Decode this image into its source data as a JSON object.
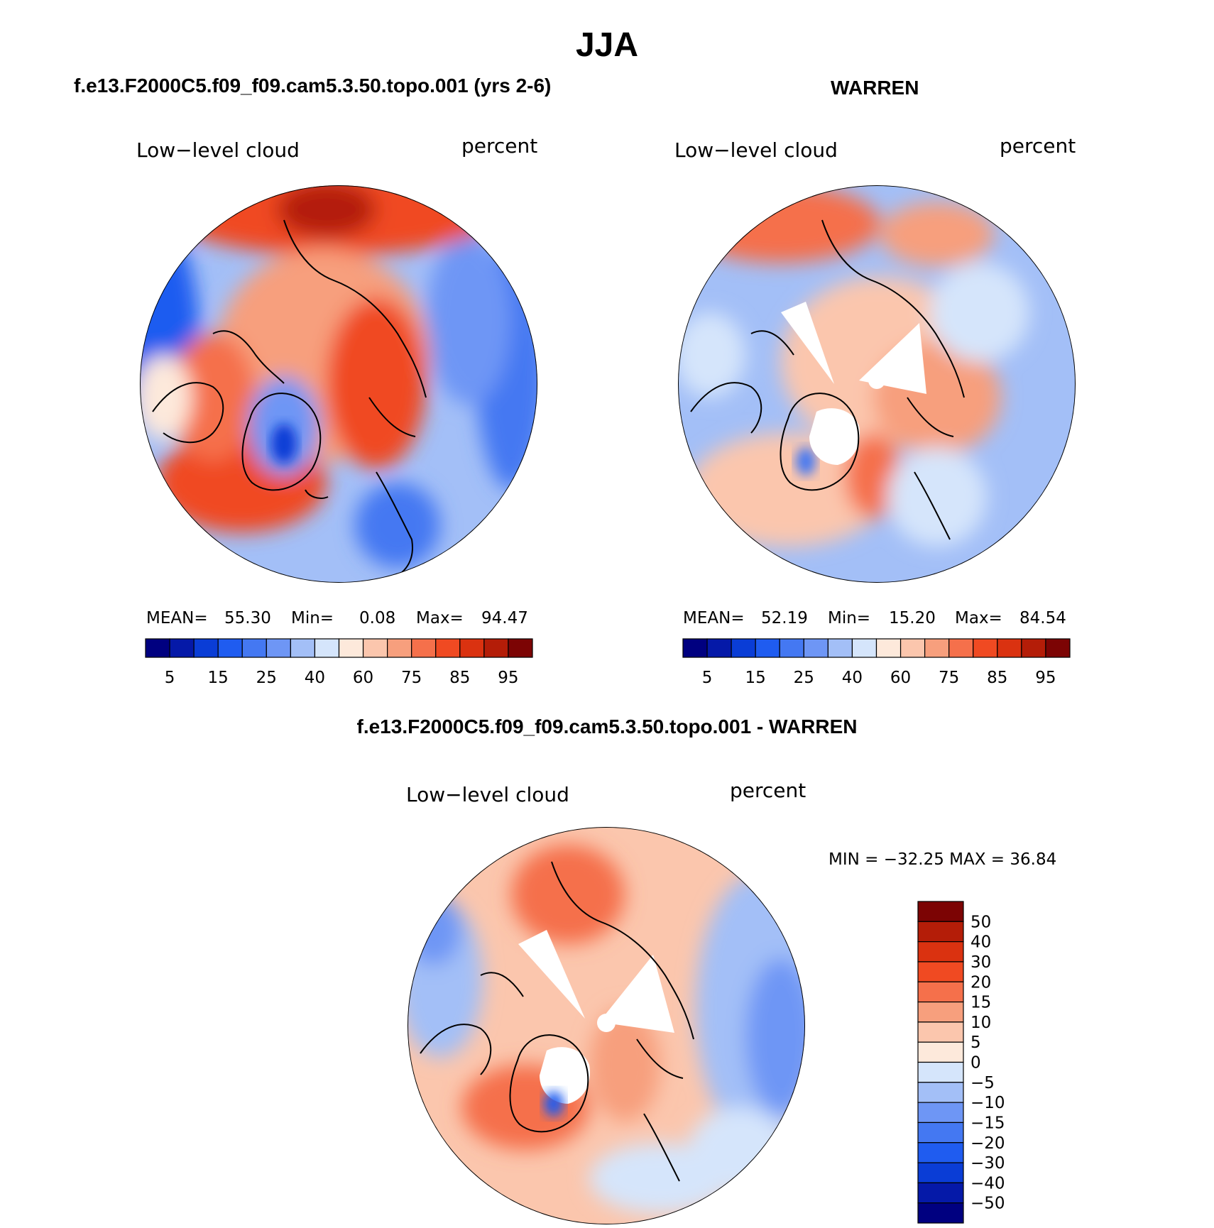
{
  "title": "JJA",
  "colors": {
    "seq": [
      "#000080",
      "#0519a8",
      "#0a3dd6",
      "#1f5cf0",
      "#4478f2",
      "#6e96f5",
      "#a3bff7",
      "#d5e5fb",
      "#fde9db",
      "#fbc6ad",
      "#f79f7d",
      "#f5704b",
      "#f04a22",
      "#da3210",
      "#b41d08",
      "#7c0404"
    ],
    "diff": [
      "#7c0404",
      "#b41d08",
      "#da3210",
      "#f04a22",
      "#f5704b",
      "#f79f7d",
      "#fbc6ad",
      "#fde9db",
      "#d5e5fb",
      "#a3bff7",
      "#6e96f5",
      "#4478f2",
      "#1f5cf0",
      "#0a3dd6",
      "#0519a8",
      "#000080"
    ],
    "land": "#000000",
    "missing": "#ffffff"
  },
  "panels": [
    {
      "id": "model",
      "title": "f.e13.F2000C5.f09_f09.cam5.3.50.topo.001 (yrs 2-6)",
      "left_label": "Low−level cloud",
      "right_label": "percent",
      "mean_label": "MEAN=",
      "mean": "55.30",
      "min_label": "Min=",
      "min": "0.08",
      "max_label": "Max=",
      "max": "94.47",
      "colorbar_ticks": [
        "5",
        "15",
        "25",
        "40",
        "60",
        "75",
        "85",
        "95"
      ]
    },
    {
      "id": "obs",
      "title": "WARREN",
      "left_label": "Low−level cloud",
      "right_label": "percent",
      "mean_label": "MEAN=",
      "mean": "52.19",
      "min_label": "Min=",
      "min": "15.20",
      "max_label": "Max=",
      "max": "84.54",
      "colorbar_ticks": [
        "5",
        "15",
        "25",
        "40",
        "60",
        "75",
        "85",
        "95"
      ]
    },
    {
      "id": "diff",
      "title": "f.e13.F2000C5.f09_f09.cam5.3.50.topo.001 - WARREN",
      "left_label": "Low−level cloud",
      "right_label": "percent",
      "minmax": "MIN = −32.25 MAX =   36.84",
      "colorbar_ticks": [
        "50",
        "40",
        "30",
        "20",
        "15",
        "10",
        "5",
        "0",
        "−5",
        "−10",
        "−15",
        "−20",
        "−30",
        "−40",
        "−50"
      ]
    }
  ]
}
